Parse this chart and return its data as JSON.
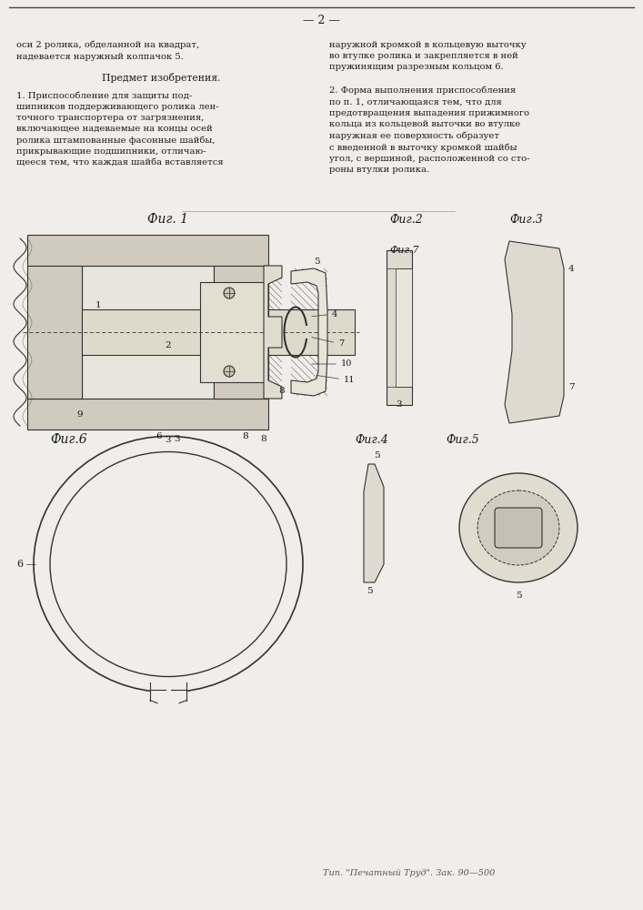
{
  "page_number": "— 2 —",
  "background_color": "#f0eeea",
  "text_color": "#1a1a1a",
  "left_column_top": "оси 2 ролика, обделанной на квадрат,\nнадевается наружный колпачок 5.",
  "section_header": "Предмет изобретения.",
  "claim1_text": "1. Приспособление для защиты под-\nшипников поддерживающего ролика лен-\nточного транспортера от загрязнения,\nвключающее надеваемые на концы осей\nролика штампованные фасонные шайбы,\nприкрывающие подшипники, отличаю-\nщееся тем, что каждая шайба вставляется",
  "right_column_top": "наружной кромкой в кольцевую выточку\nво втулке ролика и закрепляется в ней\nпружинящим разрезным кольцом 6.",
  "claim2_text": "2. Форма выполнения приспособления\nпо п. 1, отличающаяся тем, что для\nпредотвращения выпадения прижимного\nкольца из кольцевой выточки во втулке\nнаружная ее поверхность образует\nс введенной в выточку кромкой шайбы\nугол, с вершиной, расположенной со сто-\nроны втулки ролика.",
  "footer_text": "Тип. \"Печатный Труд\". Зак. 90—500"
}
